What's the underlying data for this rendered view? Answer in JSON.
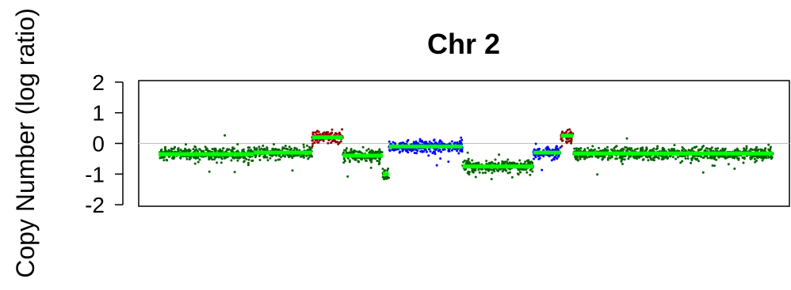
{
  "chart_data": {
    "type": "scatter",
    "title": "Chr 2",
    "ylabel": "Copy Number (log ratio)",
    "xlabel": "",
    "ylim": [
      -2.05,
      2.05
    ],
    "y_ticks": [
      2,
      1,
      0,
      -1,
      -2
    ],
    "y_tick_labels": [
      "2",
      "1",
      "0",
      "-1",
      "-2"
    ],
    "x_ticks_shown": false,
    "grid": false,
    "baseline": 0,
    "colors": {
      "normal": "#006400",
      "gain": "#8b0000",
      "gain_moderate": "#0000ff",
      "segment": "#00ff00",
      "baseline": "#bebebe"
    },
    "x_range": [
      0,
      1
    ],
    "segments": [
      {
        "x_start": 0.0,
        "x_end": 0.155,
        "mean": -0.35,
        "status": "normal"
      },
      {
        "x_start": 0.155,
        "x_end": 0.25,
        "mean": -0.3,
        "status": "normal"
      },
      {
        "x_start": 0.25,
        "x_end": 0.3,
        "mean": 0.2,
        "status": "gain"
      },
      {
        "x_start": 0.3,
        "x_end": 0.365,
        "mean": -0.4,
        "status": "normal"
      },
      {
        "x_start": 0.365,
        "x_end": 0.375,
        "mean": -1.0,
        "status": "normal"
      },
      {
        "x_start": 0.375,
        "x_end": 0.495,
        "mean": -0.1,
        "status": "gain_moderate"
      },
      {
        "x_start": 0.495,
        "x_end": 0.54,
        "mean": -0.75,
        "status": "normal"
      },
      {
        "x_start": 0.54,
        "x_end": 0.61,
        "mean": -0.75,
        "status": "normal"
      },
      {
        "x_start": 0.61,
        "x_end": 0.655,
        "mean": -0.3,
        "status": "gain_moderate"
      },
      {
        "x_start": 0.655,
        "x_end": 0.675,
        "mean": 0.25,
        "status": "gain"
      },
      {
        "x_start": 0.675,
        "x_end": 1.0,
        "mean": -0.33,
        "status": "normal"
      }
    ]
  }
}
